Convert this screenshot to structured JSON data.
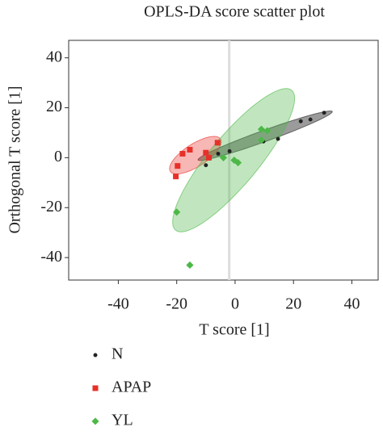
{
  "chart_data": {
    "type": "scatter",
    "title": "OPLS-DA score scatter plot",
    "x_label": "T score [1]",
    "y_label": "Orthogonal T score [1]",
    "xlim": [
      -57,
      49
    ],
    "ylim": [
      -49,
      47
    ],
    "xticks": [
      -40,
      -20,
      0,
      20,
      40
    ],
    "yticks": [
      -40,
      -20,
      0,
      20,
      40
    ],
    "vline": -2,
    "series": [
      {
        "name": "N",
        "color": "#222222",
        "marker": "circle",
        "x": [
          -5.8,
          -1.9,
          9.7,
          14.7,
          22.5,
          25.8,
          30.5,
          -10
        ],
        "values": [
          1.6,
          2.6,
          6.5,
          7.5,
          14.6,
          15.3,
          18,
          -3
        ],
        "ellipse": {
          "center": [
            10.3,
            8.8
          ],
          "major": [
            23,
            9.7
          ],
          "minor": [
            0.7,
            -2.1
          ]
        }
      },
      {
        "name": "APAP",
        "color": "#e8302a",
        "marker": "square",
        "x": [
          -20.3,
          -19.7,
          -18,
          -15.5,
          -6,
          -9,
          -10
        ],
        "values": [
          -7.5,
          -3.3,
          1.6,
          3.2,
          6,
          0,
          2
        ],
        "ellipse": {
          "center": [
            -13.6,
            1
          ],
          "major": [
            8.6,
            6.5
          ],
          "minor": [
            2.1,
            -3.8
          ]
        }
      },
      {
        "name": "YL",
        "color": "#4db848",
        "marker": "diamond",
        "x": [
          -20,
          -15.5,
          -0.3,
          1,
          9,
          11,
          9,
          -4
        ],
        "values": [
          -21.8,
          -43,
          -1,
          -2,
          11.4,
          10.8,
          7,
          0
        ],
        "ellipse": {
          "center": [
            -0.5,
            -1
          ],
          "major": [
            19.9,
            28
          ],
          "minor": [
            6.4,
            -6.3
          ]
        }
      }
    ]
  }
}
